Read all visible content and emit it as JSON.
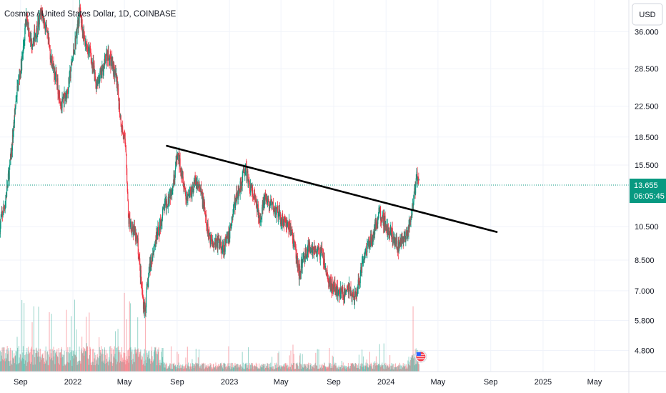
{
  "chart_data": {
    "type": "candlestick",
    "title": "Cosmos / United States Dollar, 1D, COINBASE",
    "currency": "USD",
    "y_axis_scale": "log",
    "ylim": [
      4.2,
      44
    ],
    "xlim": [
      "2021-07-15",
      "2025-07-20"
    ],
    "y_ticks": [
      "36.000",
      "28.500",
      "22.500",
      "18.500",
      "15.500",
      "10.500",
      "8.500",
      "7.000",
      "5.800",
      "4.800"
    ],
    "x_ticks": [
      {
        "label": "Sep",
        "date": "2021-09-01"
      },
      {
        "label": "2022",
        "date": "2022-01-01"
      },
      {
        "label": "May",
        "date": "2022-05-01"
      },
      {
        "label": "Sep",
        "date": "2022-09-01"
      },
      {
        "label": "2023",
        "date": "2023-01-01"
      },
      {
        "label": "May",
        "date": "2023-05-01"
      },
      {
        "label": "Sep",
        "date": "2023-09-01"
      },
      {
        "label": "2024",
        "date": "2024-01-01"
      },
      {
        "label": "May",
        "date": "2024-05-01"
      },
      {
        "label": "Sep",
        "date": "2024-09-01"
      },
      {
        "label": "2025",
        "date": "2025-01-01"
      },
      {
        "label": "May",
        "date": "2025-05-01"
      }
    ],
    "last_price": {
      "value": 13.655,
      "label": "13.655",
      "countdown": "06:05:45"
    },
    "trendline": {
      "start": {
        "date": "2022-08-08",
        "price": 17.5
      },
      "end": {
        "date": "2024-09-15",
        "price": 10.15
      }
    },
    "price_path": [
      [
        "2021-07-15",
        10.6
      ],
      [
        "2021-07-28",
        12.4
      ],
      [
        "2021-08-10",
        16.5
      ],
      [
        "2021-08-22",
        24.0
      ],
      [
        "2021-09-05",
        30.5
      ],
      [
        "2021-09-15",
        40.0
      ],
      [
        "2021-09-25",
        33.5
      ],
      [
        "2021-10-08",
        36.0
      ],
      [
        "2021-10-20",
        41.0
      ],
      [
        "2021-10-30",
        36.5
      ],
      [
        "2021-11-10",
        31.0
      ],
      [
        "2021-11-25",
        26.0
      ],
      [
        "2021-12-06",
        22.5
      ],
      [
        "2021-12-20",
        25.0
      ],
      [
        "2022-01-05",
        33.0
      ],
      [
        "2022-01-17",
        41.0
      ],
      [
        "2022-01-28",
        34.0
      ],
      [
        "2022-02-10",
        31.5
      ],
      [
        "2022-02-24",
        26.0
      ],
      [
        "2022-03-08",
        27.5
      ],
      [
        "2022-03-20",
        31.0
      ],
      [
        "2022-04-01",
        30.0
      ],
      [
        "2022-04-12",
        26.5
      ],
      [
        "2022-04-24",
        20.0
      ],
      [
        "2022-05-05",
        17.0
      ],
      [
        "2022-05-10",
        11.0
      ],
      [
        "2022-05-20",
        10.5
      ],
      [
        "2022-06-01",
        9.4
      ],
      [
        "2022-06-13",
        6.6
      ],
      [
        "2022-06-18",
        6.2
      ],
      [
        "2022-06-28",
        8.0
      ],
      [
        "2022-07-10",
        9.4
      ],
      [
        "2022-07-20",
        10.2
      ],
      [
        "2022-08-01",
        11.8
      ],
      [
        "2022-08-12",
        12.6
      ],
      [
        "2022-08-22",
        13.8
      ],
      [
        "2022-09-02",
        16.5
      ],
      [
        "2022-09-12",
        15.0
      ],
      [
        "2022-09-22",
        12.6
      ],
      [
        "2022-10-05",
        13.3
      ],
      [
        "2022-10-15",
        14.0
      ],
      [
        "2022-10-24",
        13.2
      ],
      [
        "2022-11-01",
        12.2
      ],
      [
        "2022-11-10",
        10.3
      ],
      [
        "2022-11-20",
        9.6
      ],
      [
        "2022-12-05",
        9.5
      ],
      [
        "2022-12-18",
        9.2
      ],
      [
        "2022-12-30",
        9.8
      ],
      [
        "2023-01-12",
        12.0
      ],
      [
        "2023-01-25",
        13.5
      ],
      [
        "2023-02-06",
        15.2
      ],
      [
        "2023-02-18",
        13.5
      ],
      [
        "2023-03-01",
        12.4
      ],
      [
        "2023-03-12",
        11.1
      ],
      [
        "2023-03-25",
        12.5
      ],
      [
        "2023-04-06",
        12.0
      ],
      [
        "2023-04-18",
        11.6
      ],
      [
        "2023-04-30",
        11.1
      ],
      [
        "2023-05-12",
        10.7
      ],
      [
        "2023-05-25",
        10.3
      ],
      [
        "2023-06-06",
        8.6
      ],
      [
        "2023-06-12",
        7.8
      ],
      [
        "2023-06-25",
        8.8
      ],
      [
        "2023-07-10",
        9.3
      ],
      [
        "2023-07-22",
        9.0
      ],
      [
        "2023-08-05",
        8.8
      ],
      [
        "2023-08-18",
        7.5
      ],
      [
        "2023-09-01",
        7.1
      ],
      [
        "2023-09-12",
        6.9
      ],
      [
        "2023-09-24",
        6.85
      ],
      [
        "2023-10-06",
        7.15
      ],
      [
        "2023-10-18",
        6.6
      ],
      [
        "2023-10-30",
        7.4
      ],
      [
        "2023-11-10",
        8.8
      ],
      [
        "2023-11-22",
        9.5
      ],
      [
        "2023-12-05",
        10.2
      ],
      [
        "2023-12-15",
        11.6
      ],
      [
        "2023-12-26",
        11.0
      ],
      [
        "2024-01-06",
        10.2
      ],
      [
        "2024-01-18",
        9.9
      ],
      [
        "2024-01-30",
        9.2
      ],
      [
        "2024-02-12",
        9.8
      ],
      [
        "2024-02-22",
        10.2
      ],
      [
        "2024-03-01",
        11.5
      ],
      [
        "2024-03-08",
        13.1
      ],
      [
        "2024-03-13",
        14.6
      ],
      [
        "2024-03-18",
        13.655
      ]
    ]
  }
}
